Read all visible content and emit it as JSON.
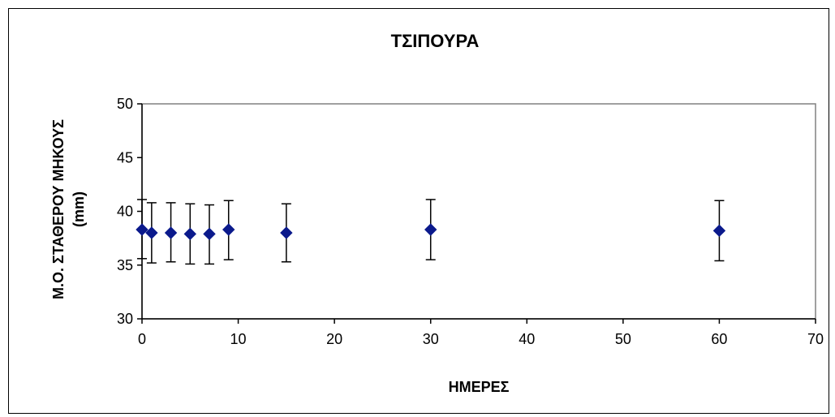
{
  "chart_data": {
    "type": "scatter",
    "title": "ΤΣΙΠΟΥΡΑ",
    "xlabel": "ΗΜΕΡΕΣ",
    "ylabel_line1": "Μ.Ο. ΣΤΑΘΕΡΟΥ ΜΗΚΟΥΣ",
    "ylabel_line2": "(mm)",
    "xlim": [
      0,
      70
    ],
    "ylim": [
      30,
      50
    ],
    "xticks": [
      0,
      10,
      20,
      30,
      40,
      50,
      60,
      70
    ],
    "yticks": [
      30,
      35,
      40,
      45,
      50
    ],
    "grid": false,
    "legend": "none",
    "marker": "diamond",
    "marker_color": "#0b1a8c",
    "errorbar_color": "#000000",
    "plot_border_color": "#808080",
    "points": [
      {
        "x": 0,
        "y": 38.3,
        "ylow": 35.6,
        "yhigh": 41.1
      },
      {
        "x": 1,
        "y": 38.0,
        "ylow": 35.2,
        "yhigh": 40.8
      },
      {
        "x": 3,
        "y": 38.0,
        "ylow": 35.3,
        "yhigh": 40.8
      },
      {
        "x": 5,
        "y": 37.9,
        "ylow": 35.1,
        "yhigh": 40.7
      },
      {
        "x": 7,
        "y": 37.9,
        "ylow": 35.1,
        "yhigh": 40.6
      },
      {
        "x": 9,
        "y": 38.3,
        "ylow": 35.5,
        "yhigh": 41.0
      },
      {
        "x": 15,
        "y": 38.0,
        "ylow": 35.3,
        "yhigh": 40.7
      },
      {
        "x": 30,
        "y": 38.3,
        "ylow": 35.5,
        "yhigh": 41.1
      },
      {
        "x": 60,
        "y": 38.2,
        "ylow": 35.4,
        "yhigh": 41.0
      }
    ]
  }
}
